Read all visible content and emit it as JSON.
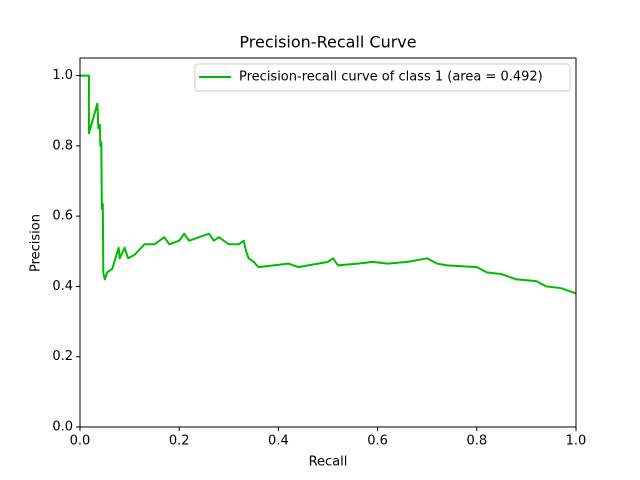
{
  "chart_data": {
    "type": "line",
    "title": "Precision-Recall Curve",
    "xlabel": "Recall",
    "ylabel": "Precision",
    "x": [
      0,
      0.018,
      0.018,
      0.035,
      0.037,
      0.04,
      0.041,
      0.043,
      0.044,
      0.046,
      0.047,
      0.05,
      0.055,
      0.065,
      0.078,
      0.08,
      0.09,
      0.097,
      0.11,
      0.13,
      0.15,
      0.17,
      0.18,
      0.2,
      0.21,
      0.22,
      0.24,
      0.26,
      0.27,
      0.28,
      0.3,
      0.32,
      0.33,
      0.335,
      0.34,
      0.35,
      0.36,
      0.39,
      0.42,
      0.44,
      0.46,
      0.5,
      0.51,
      0.52,
      0.56,
      0.59,
      0.62,
      0.66,
      0.7,
      0.72,
      0.74,
      0.8,
      0.82,
      0.85,
      0.88,
      0.92,
      0.94,
      0.97,
      1.0
    ],
    "series": [
      {
        "name": "Precision-recall curve of class 1 (area = 0.492)",
        "color": "#00bb00",
        "values": [
          1.0,
          1.0,
          0.836,
          0.92,
          0.85,
          0.86,
          0.8,
          0.81,
          0.62,
          0.635,
          0.44,
          0.42,
          0.44,
          0.45,
          0.51,
          0.48,
          0.51,
          0.48,
          0.49,
          0.52,
          0.52,
          0.54,
          0.52,
          0.53,
          0.55,
          0.53,
          0.54,
          0.55,
          0.53,
          0.54,
          0.52,
          0.52,
          0.53,
          0.5,
          0.48,
          0.47,
          0.455,
          0.46,
          0.465,
          0.455,
          0.46,
          0.47,
          0.48,
          0.46,
          0.465,
          0.47,
          0.465,
          0.47,
          0.48,
          0.465,
          0.46,
          0.455,
          0.44,
          0.435,
          0.42,
          0.415,
          0.4,
          0.395,
          0.38
        ]
      }
    ],
    "xlim": [
      0,
      1
    ],
    "ylim": [
      0,
      1.05
    ],
    "xticks": [
      {
        "value": 0,
        "label": "0.0"
      },
      {
        "value": 0.2,
        "label": "0.2"
      },
      {
        "value": 0.4,
        "label": "0.4"
      },
      {
        "value": 0.6,
        "label": "0.6"
      },
      {
        "value": 0.8,
        "label": "0.8"
      },
      {
        "value": 1,
        "label": "1.0"
      }
    ],
    "yticks": [
      {
        "value": 0,
        "label": "0.0"
      },
      {
        "value": 0.2,
        "label": "0.2"
      },
      {
        "value": 0.4,
        "label": "0.4"
      },
      {
        "value": 0.6,
        "label": "0.6"
      },
      {
        "value": 0.8,
        "label": "0.8"
      },
      {
        "value": 1,
        "label": "1.0"
      }
    ],
    "legend": "upper right"
  }
}
